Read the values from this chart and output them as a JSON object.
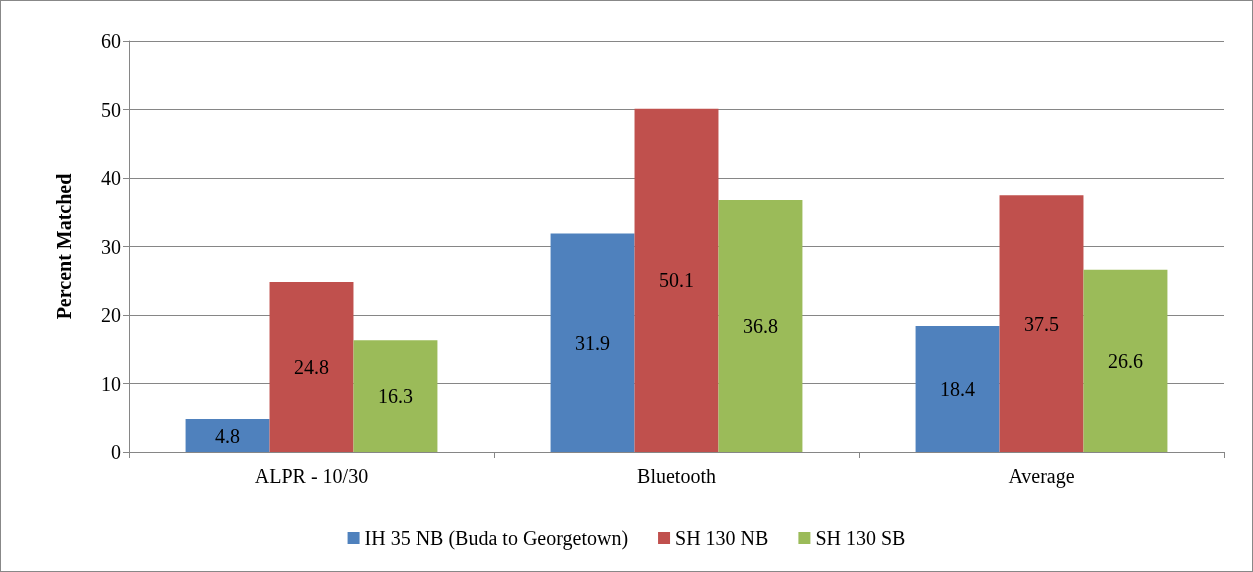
{
  "chart_data": {
    "type": "bar",
    "ylabel": "Percent Matched",
    "categories": [
      "ALPR - 10/30",
      "Bluetooth",
      "Average"
    ],
    "series": [
      {
        "name": "IH 35 NB (Buda to Georgetown)",
        "color": "#4f81bd",
        "values": [
          4.8,
          31.9,
          18.4
        ]
      },
      {
        "name": "SH 130 NB",
        "color": "#c0504d",
        "values": [
          24.8,
          50.1,
          37.5
        ]
      },
      {
        "name": "SH 130 SB",
        "color": "#9bbb59",
        "values": [
          16.3,
          36.8,
          26.6
        ]
      }
    ],
    "ylim": [
      0,
      60
    ],
    "yticks": [
      0,
      10,
      20,
      30,
      40,
      50,
      60
    ],
    "grid": "y",
    "legend": "bottom",
    "data_labels": true
  }
}
